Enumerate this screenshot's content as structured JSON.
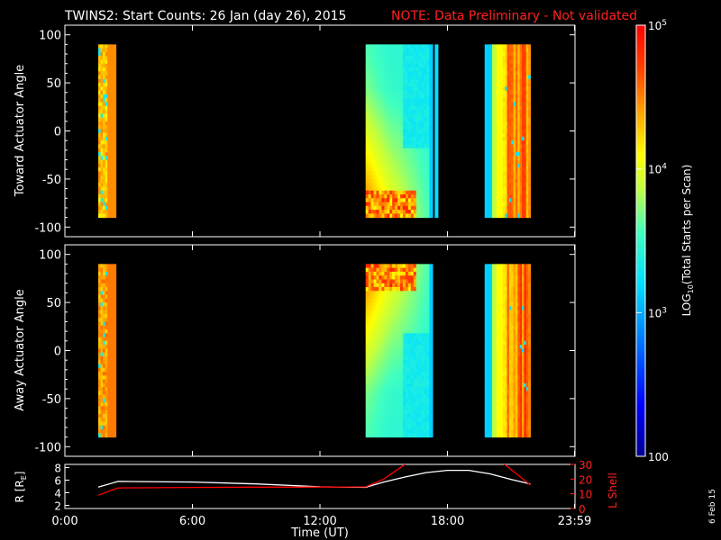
{
  "title": {
    "main": "TWINS2: Start Counts: 26 Jan (day  26), 2015",
    "note": "NOTE: Data Preliminary - Not validated"
  },
  "date_stamp": "6 Feb 15",
  "colorbar": {
    "label_parts": [
      "LOG",
      "10",
      "(Total Starts per Scan)"
    ],
    "ticks": [
      {
        "value": 100,
        "label": "100"
      },
      {
        "value": 1000,
        "label": "10",
        "exp": "3"
      },
      {
        "value": 10000,
        "label": "10",
        "exp": "4"
      },
      {
        "value": 100000,
        "label": "10",
        "exp": "5"
      }
    ]
  },
  "chart_data": [
    {
      "type": "heatmap",
      "name": "toward",
      "ylabel": "Toward Actuator Angle",
      "xlim": [
        0,
        24
      ],
      "ylim": [
        -110,
        110
      ],
      "yticks": [
        -100,
        -50,
        0,
        50,
        100
      ],
      "colorscale": "log",
      "zlim": [
        100,
        100000
      ],
      "blocks": [
        {
          "x0": 1.57,
          "x1": 2.0,
          "style": "mixed",
          "base": 0.77
        },
        {
          "x0": 2.0,
          "x1": 2.4,
          "style": "solid",
          "base": 0.82
        },
        {
          "x0": 14.15,
          "x1": 17.15,
          "style": "gradient",
          "base": 0.5
        },
        {
          "x0": 17.15,
          "x1": 17.3,
          "style": "solid",
          "base": 0.38
        },
        {
          "x0": 17.4,
          "x1": 17.55,
          "style": "solid",
          "base": 0.4
        },
        {
          "x0": 19.75,
          "x1": 20.1,
          "style": "solid",
          "base": 0.38
        },
        {
          "x0": 20.1,
          "x1": 20.3,
          "style": "solid",
          "base": 0.62
        },
        {
          "x0": 20.3,
          "x1": 20.6,
          "style": "solid",
          "base": 0.7
        },
        {
          "x0": 20.6,
          "x1": 21.3,
          "style": "stripes",
          "base": 0.8
        },
        {
          "x0": 21.3,
          "x1": 21.9,
          "style": "stripes",
          "base": 0.85
        }
      ]
    },
    {
      "type": "heatmap",
      "name": "away",
      "ylabel": "Away Actuator Angle",
      "xlim": [
        0,
        24
      ],
      "ylim": [
        -110,
        110
      ],
      "yticks": [
        -100,
        -50,
        0,
        50,
        100
      ],
      "colorscale": "log",
      "zlim": [
        100,
        100000
      ],
      "blocks": [
        {
          "x0": 1.57,
          "x1": 2.0,
          "style": "mixed",
          "base": 0.8
        },
        {
          "x0": 2.0,
          "x1": 2.4,
          "style": "solid",
          "base": 0.84
        },
        {
          "x0": 14.15,
          "x1": 17.15,
          "style": "gradient",
          "base": 0.5
        },
        {
          "x0": 17.15,
          "x1": 17.3,
          "style": "solid",
          "base": 0.38
        },
        {
          "x0": 19.75,
          "x1": 20.1,
          "style": "solid",
          "base": 0.38
        },
        {
          "x0": 20.1,
          "x1": 20.3,
          "style": "solid",
          "base": 0.62
        },
        {
          "x0": 20.3,
          "x1": 20.6,
          "style": "solid",
          "base": 0.7
        },
        {
          "x0": 20.6,
          "x1": 21.3,
          "style": "stripes",
          "base": 0.8
        },
        {
          "x0": 21.3,
          "x1": 21.9,
          "style": "stripes",
          "base": 0.85
        }
      ]
    },
    {
      "type": "line",
      "name": "orbit",
      "xlabel": "Time (UT)",
      "ylabel": "R [R",
      "ylabel_sub": "E",
      "ylabel_tail": "]",
      "y2label": "L Shell",
      "xlim": [
        0,
        24
      ],
      "xticks": [
        {
          "value": 0,
          "label": "0:00"
        },
        {
          "value": 6,
          "label": "6:00"
        },
        {
          "value": 12,
          "label": "12:00"
        },
        {
          "value": 18,
          "label": "18:00"
        },
        {
          "value": 23.98,
          "label": "23:59"
        }
      ],
      "ylim": [
        1.5,
        8.5
      ],
      "yticks": [
        2,
        4,
        6,
        8
      ],
      "y2lim": [
        0,
        30
      ],
      "y2ticks": [
        0,
        10,
        20,
        30
      ],
      "series": [
        {
          "color": "#ffffff",
          "axis": "left",
          "x": [
            1.57,
            2.5,
            6,
            9,
            12,
            14.15,
            15,
            16,
            17,
            18,
            19,
            20,
            21,
            21.9
          ],
          "y": [
            4.9,
            5.8,
            5.7,
            5.4,
            4.95,
            4.85,
            5.7,
            6.5,
            7.2,
            7.55,
            7.55,
            7.0,
            6.1,
            5.4
          ]
        },
        {
          "color": "#ff0000",
          "axis": "right",
          "x": [
            1.57,
            2.5,
            6,
            9,
            12,
            14.15,
            15,
            16,
            16.2,
            20.35,
            21.9
          ],
          "y": [
            9,
            14,
            14.3,
            14.5,
            14.6,
            14.7,
            20,
            30,
            34,
            34,
            16
          ]
        }
      ]
    }
  ]
}
